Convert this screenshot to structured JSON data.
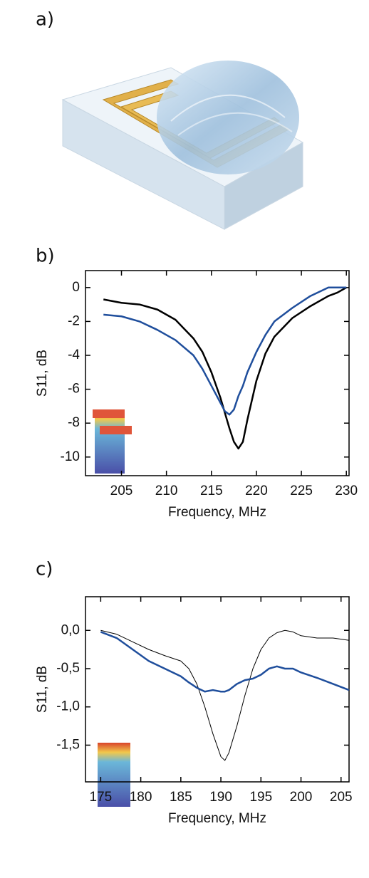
{
  "illustration": {
    "panel_label": "a)"
  },
  "chart_data": [
    {
      "type": "line",
      "panel_label": "b)",
      "xlabel": "Frequency, MHz",
      "ylabel": "S11, dB",
      "xlim": [
        201,
        230.3
      ],
      "ylim": [
        -11.1,
        1
      ],
      "xticks": [
        205,
        210,
        215,
        220,
        225,
        230
      ],
      "yticks": [
        0,
        -2,
        -4,
        -6,
        -8,
        -10
      ],
      "x": [
        203,
        205,
        207,
        209,
        211,
        213,
        214,
        215,
        216,
        216.5,
        217,
        217.5,
        218,
        218.5,
        219,
        220,
        221,
        222,
        224,
        226,
        228,
        229,
        230
      ],
      "series": [
        {
          "color": "#000000",
          "linewidth": 2.5,
          "values": [
            -0.7,
            -0.9,
            -1.0,
            -1.3,
            -1.9,
            -3.0,
            -3.8,
            -5.0,
            -6.5,
            -7.4,
            -8.3,
            -9.1,
            -9.5,
            -9.1,
            -7.8,
            -5.5,
            -3.9,
            -2.9,
            -1.8,
            -1.1,
            -0.5,
            -0.3,
            0
          ]
        },
        {
          "color": "#1f4e9c",
          "linewidth": 2.5,
          "values": [
            -1.6,
            -1.7,
            -2.0,
            -2.5,
            -3.1,
            -4.0,
            -4.8,
            -5.8,
            -6.8,
            -7.3,
            -7.5,
            -7.2,
            -6.4,
            -5.8,
            -5.0,
            -3.8,
            -2.8,
            -2.0,
            -1.2,
            -0.5,
            0,
            0,
            0
          ]
        }
      ]
    },
    {
      "type": "line",
      "panel_label": "c)",
      "xlabel": "Frequency, MHz",
      "ylabel": "S11, dB",
      "xlim": [
        173.1,
        206
      ],
      "ylim": [
        -1.98,
        0.44
      ],
      "xticks": [
        175,
        180,
        185,
        190,
        195,
        200,
        205
      ],
      "yticks": [
        {
          "value": 0,
          "label": "0,0"
        },
        {
          "value": -0.5,
          "label": "-0,5"
        },
        {
          "value": -1,
          "label": "-1,0"
        },
        {
          "value": -1.5,
          "label": "-1,5"
        }
      ],
      "x": [
        175,
        177,
        179,
        181,
        183,
        185,
        186,
        187,
        188,
        189,
        190,
        190.5,
        191,
        192,
        193,
        194,
        195,
        196,
        197,
        198,
        199,
        200,
        202,
        204,
        206
      ],
      "series": [
        {
          "color": "#000000",
          "linewidth": 1,
          "values": [
            0,
            -0.05,
            -0.15,
            -0.25,
            -0.33,
            -0.4,
            -0.5,
            -0.7,
            -1.0,
            -1.35,
            -1.65,
            -1.7,
            -1.6,
            -1.25,
            -0.85,
            -0.5,
            -0.25,
            -0.1,
            -0.03,
            0,
            -0.02,
            -0.07,
            -0.1,
            -0.1,
            -0.13
          ]
        },
        {
          "color": "#1f4e9c",
          "linewidth": 2.5,
          "values": [
            -0.02,
            -0.1,
            -0.25,
            -0.4,
            -0.5,
            -0.6,
            -0.68,
            -0.75,
            -0.8,
            -0.78,
            -0.8,
            -0.8,
            -0.78,
            -0.7,
            -0.65,
            -0.63,
            -0.58,
            -0.5,
            -0.47,
            -0.5,
            -0.5,
            -0.55,
            -0.62,
            -0.7,
            -0.78
          ]
        }
      ]
    }
  ]
}
